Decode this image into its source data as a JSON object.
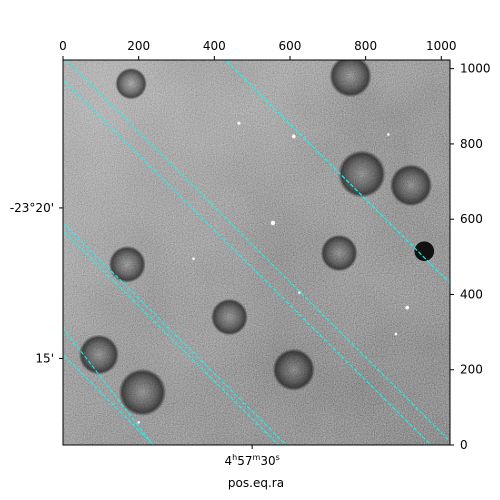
{
  "chart_data": {
    "type": "heatmap",
    "image": {
      "description_colormap": "gray_r",
      "bright_sources": [
        {
          "x": 955,
          "y": 515,
          "r": 26
        },
        {
          "x": 555,
          "y": 590,
          "r": 7
        },
        {
          "x": 610,
          "y": 820,
          "r": 6
        },
        {
          "x": 910,
          "y": 365,
          "r": 6
        },
        {
          "x": 465,
          "y": 855,
          "r": 5
        },
        {
          "x": 345,
          "y": 495,
          "r": 4
        },
        {
          "x": 625,
          "y": 405,
          "r": 4
        },
        {
          "x": 200,
          "y": 60,
          "r": 4
        },
        {
          "x": 860,
          "y": 825,
          "r": 4
        },
        {
          "x": 880,
          "y": 295,
          "r": 3
        }
      ],
      "dark_rings": [
        {
          "x": 210,
          "y": 140,
          "r": 45
        },
        {
          "x": 95,
          "y": 240,
          "r": 38
        },
        {
          "x": 610,
          "y": 200,
          "r": 40
        },
        {
          "x": 790,
          "y": 720,
          "r": 45
        },
        {
          "x": 920,
          "y": 690,
          "r": 40
        },
        {
          "x": 730,
          "y": 510,
          "r": 35
        },
        {
          "x": 170,
          "y": 480,
          "r": 35
        },
        {
          "x": 440,
          "y": 340,
          "r": 35
        },
        {
          "x": 760,
          "y": 980,
          "r": 40
        },
        {
          "x": 180,
          "y": 960,
          "r": 30
        }
      ]
    },
    "pixel_axes": {
      "x_ticks": [
        0,
        200,
        400,
        600,
        800,
        1000
      ],
      "y_ticks": [
        0,
        200,
        400,
        600,
        800,
        1000
      ],
      "xlim": [
        0,
        1023
      ],
      "ylim": [
        0,
        1023
      ]
    },
    "world_axes": {
      "xlabel": "pos.eq.ra",
      "ra_tick": {
        "label": "4h57m30s",
        "h": "4",
        "m": "57",
        "s": "30",
        "x": 500
      },
      "dec_ticks": [
        {
          "label": "-23°20'",
          "y": 630
        },
        {
          "label": "15'",
          "y": 230
        }
      ]
    },
    "grid": {
      "color": "#00ffff",
      "style": "dashed",
      "ra_lines": [
        [
          [
            -30,
            1000
          ],
          [
            1053,
            -80
          ]
        ],
        [
          [
            -30,
            600
          ],
          [
            650,
            -80
          ]
        ],
        [
          [
            400,
            1053
          ],
          [
            1053,
            400
          ]
        ],
        [
          [
            -30,
            350
          ],
          [
            300,
            -80
          ]
        ]
      ],
      "dec_lines": [
        [
          [
            10,
            1023
          ],
          [
            1023,
            10
          ]
        ],
        [
          [
            -30,
            620
          ],
          [
            620,
            -30
          ]
        ],
        [
          [
            -30,
            270
          ],
          [
            270,
            -30
          ]
        ],
        [
          [
            400,
            1053
          ],
          [
            1053,
            400
          ]
        ]
      ]
    }
  }
}
